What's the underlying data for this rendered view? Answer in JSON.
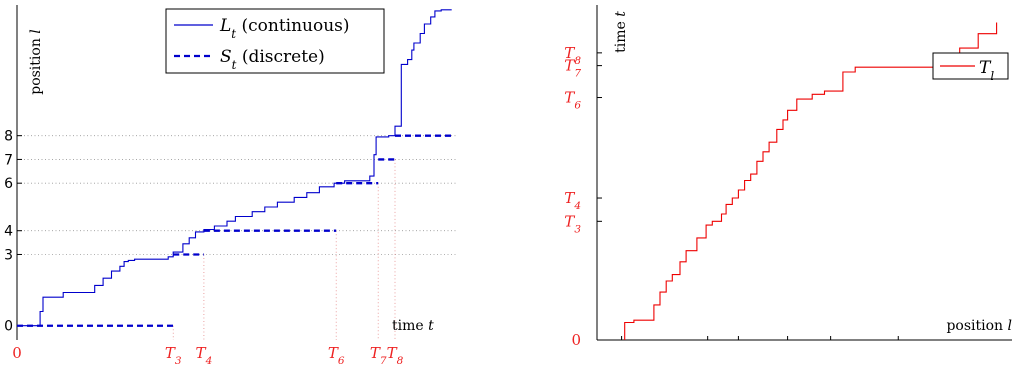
{
  "colors": {
    "continuous": "#0000cc",
    "discrete": "#0000cc",
    "time_curve": "#ee0000",
    "red_label": "#ee2222"
  },
  "chart_data": [
    {
      "type": "line",
      "title": "",
      "xlabel": "time t",
      "ylabel": "position l",
      "xlim": [
        0,
        10.5
      ],
      "ylim": [
        -0.6,
        13.5
      ],
      "x_tick_labels": [
        {
          "text": "0",
          "x": 0
        },
        {
          "text": "T3",
          "x": 3.72
        },
        {
          "text": "T4",
          "x": 4.45
        },
        {
          "text": "T6",
          "x": 7.6
        },
        {
          "text": "T7",
          "x": 8.6
        },
        {
          "text": "T8",
          "x": 9.0
        }
      ],
      "y_tick_labels": [
        {
          "text": "0",
          "y": 0
        },
        {
          "text": "3",
          "y": 3
        },
        {
          "text": "4",
          "y": 4
        },
        {
          "text": "6",
          "y": 6
        },
        {
          "text": "7",
          "y": 7
        },
        {
          "text": "8",
          "y": 8
        }
      ],
      "legend": {
        "placement": "top-center",
        "entries": [
          {
            "label": "Lt (continuous)",
            "style": "solid"
          },
          {
            "label": "St (discrete)",
            "style": "dashed"
          }
        ]
      },
      "series": [
        {
          "name": "Lt (continuous)",
          "style": "solid",
          "x": [
            0,
            0.55,
            0.55,
            0.62,
            0.62,
            1.1,
            1.1,
            1.85,
            1.85,
            2.05,
            2.05,
            2.25,
            2.25,
            2.45,
            2.45,
            2.55,
            2.55,
            2.65,
            2.65,
            2.8,
            2.8,
            3.6,
            3.6,
            3.72,
            3.72,
            3.95,
            3.95,
            4.1,
            4.1,
            4.25,
            4.25,
            4.45,
            4.45,
            4.7,
            4.7,
            5.0,
            5.0,
            5.2,
            5.2,
            5.6,
            5.6,
            5.9,
            5.9,
            6.2,
            6.2,
            6.6,
            6.6,
            6.9,
            6.9,
            7.2,
            7.2,
            7.55,
            7.55,
            7.8,
            7.8,
            8.4,
            8.4,
            8.5,
            8.5,
            8.55,
            8.55,
            8.85,
            8.85,
            9.0,
            9.0,
            9.15,
            9.15,
            9.3,
            9.3,
            9.4,
            9.4,
            9.45,
            9.45,
            9.6,
            9.6,
            9.7,
            9.7,
            9.85,
            9.85,
            9.95,
            9.95,
            10.1,
            10.1,
            10.35
          ],
          "values": [
            0,
            0,
            0.6,
            0.6,
            1.2,
            1.2,
            1.4,
            1.4,
            1.7,
            1.7,
            2.0,
            2.0,
            2.3,
            2.3,
            2.5,
            2.5,
            2.7,
            2.7,
            2.75,
            2.75,
            2.8,
            2.8,
            2.9,
            2.9,
            3.1,
            3.1,
            3.45,
            3.45,
            3.7,
            3.7,
            3.95,
            3.95,
            4.05,
            4.05,
            4.2,
            4.2,
            4.4,
            4.4,
            4.6,
            4.6,
            4.8,
            4.8,
            5.0,
            5.0,
            5.2,
            5.2,
            5.4,
            5.4,
            5.6,
            5.6,
            5.85,
            5.85,
            6.0,
            6.0,
            6.1,
            6.1,
            6.3,
            6.3,
            7.2,
            7.2,
            7.95,
            7.95,
            8.0,
            8.0,
            8.4,
            8.4,
            11.0,
            11.0,
            11.2,
            11.2,
            11.6,
            11.6,
            11.9,
            11.9,
            12.3,
            12.3,
            12.7,
            12.7,
            13.0,
            13.0,
            13.25,
            13.25,
            13.3,
            13.3
          ]
        },
        {
          "name": "St (discrete)",
          "style": "dashed",
          "segments": [
            {
              "x0": 0,
              "x1": 3.72,
              "y": 0
            },
            {
              "x0": 3.72,
              "x1": 4.45,
              "y": 3
            },
            {
              "x0": 4.45,
              "x1": 7.6,
              "y": 4
            },
            {
              "x0": 7.6,
              "x1": 8.6,
              "y": 6
            },
            {
              "x0": 8.6,
              "x1": 9.0,
              "y": 7
            },
            {
              "x0": 9.0,
              "x1": 10.35,
              "y": 8
            }
          ]
        }
      ]
    },
    {
      "type": "line",
      "title": "",
      "xlabel": "position l",
      "ylabel": "time t",
      "xlim": [
        0,
        13.5
      ],
      "ylim": [
        0,
        10.5
      ],
      "x_tick_positions": [
        0.8,
        3.6,
        4.6,
        6.2,
        7.6,
        9.8
      ],
      "y_tick_labels": [
        {
          "text": "0",
          "y": 0
        },
        {
          "text": "T3",
          "y": 3.72
        },
        {
          "text": "T4",
          "y": 4.45
        },
        {
          "text": "T6",
          "y": 7.6
        },
        {
          "text": "T7",
          "y": 8.6
        },
        {
          "text": "T8",
          "y": 9.0
        }
      ],
      "legend": {
        "placement": "top-right",
        "entries": [
          {
            "label": "Tl",
            "style": "solid"
          }
        ]
      },
      "series": [
        {
          "name": "Tl",
          "style": "solid",
          "x": [
            0.9,
            0.9,
            1.2,
            1.2,
            1.85,
            1.85,
            2.05,
            2.05,
            2.25,
            2.25,
            2.45,
            2.45,
            2.7,
            2.7,
            2.9,
            2.9,
            3.25,
            3.25,
            3.55,
            3.55,
            3.75,
            3.75,
            4.05,
            4.05,
            4.2,
            4.2,
            4.4,
            4.4,
            4.6,
            4.6,
            4.8,
            4.8,
            5.0,
            5.0,
            5.2,
            5.2,
            5.4,
            5.4,
            5.6,
            5.6,
            5.85,
            5.85,
            6.05,
            6.05,
            6.2,
            6.2,
            6.5,
            6.5,
            7.0,
            7.0,
            7.4,
            7.4,
            8.0,
            8.0,
            8.4,
            8.4,
            11.0,
            11.0,
            11.8,
            11.8,
            12.4,
            12.4,
            13.0,
            13.0
          ],
          "values": [
            0,
            0.55,
            0.55,
            0.62,
            0.62,
            1.1,
            1.1,
            1.5,
            1.5,
            1.85,
            1.85,
            2.05,
            2.05,
            2.45,
            2.45,
            2.8,
            2.8,
            3.2,
            3.2,
            3.6,
            3.6,
            3.72,
            3.72,
            3.95,
            3.95,
            4.25,
            4.25,
            4.45,
            4.45,
            4.7,
            4.7,
            5.0,
            5.0,
            5.2,
            5.2,
            5.6,
            5.6,
            5.9,
            5.9,
            6.2,
            6.2,
            6.6,
            6.6,
            6.9,
            6.9,
            7.2,
            7.2,
            7.55,
            7.55,
            7.7,
            7.7,
            7.8,
            7.8,
            8.4,
            8.4,
            8.55,
            8.55,
            8.85,
            8.85,
            9.15,
            9.15,
            9.6,
            9.6,
            9.95
          ]
        }
      ]
    }
  ]
}
